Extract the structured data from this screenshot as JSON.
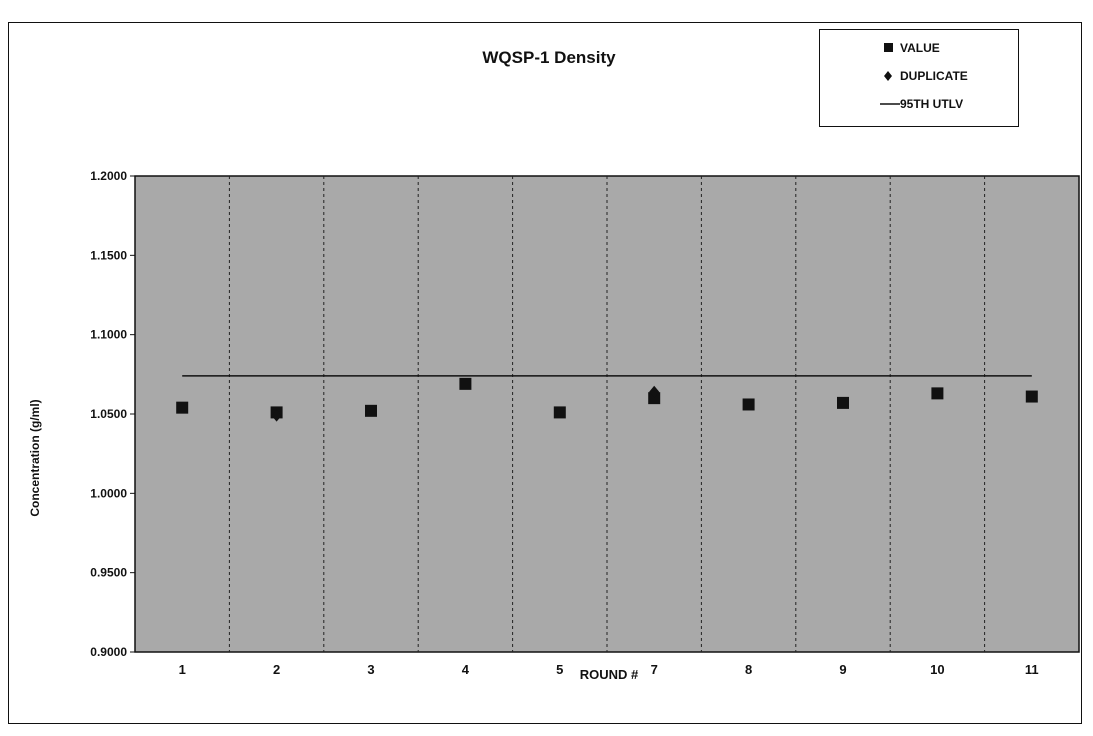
{
  "chart_data": {
    "type": "scatter",
    "title": "WQSP-1 Density",
    "xlabel": "ROUND #",
    "ylabel": "Concentration (g/ml)",
    "categories": [
      "1",
      "2",
      "3",
      "4",
      "5",
      "7",
      "8",
      "9",
      "10",
      "11"
    ],
    "ylim": [
      0.9,
      1.2
    ],
    "yticks": [
      "0.9000",
      "0.9500",
      "1.0000",
      "1.0500",
      "1.1000",
      "1.1500",
      "1.2000"
    ],
    "grid": "vertical dashed lines between rounds",
    "legend_position": "top-right",
    "series": [
      {
        "name": "VALUE",
        "marker": "square",
        "values": [
          1.054,
          1.051,
          1.052,
          1.069,
          1.051,
          1.06,
          1.056,
          1.057,
          1.063,
          1.061
        ]
      },
      {
        "name": "DUPLICATE",
        "marker": "diamond",
        "values": [
          null,
          1.049,
          null,
          null,
          null,
          1.064,
          null,
          null,
          null,
          null
        ]
      },
      {
        "name": "95TH UTLV",
        "marker": "line",
        "values": [
          1.074,
          1.074,
          1.074,
          1.074,
          1.074,
          1.074,
          1.074,
          1.074,
          1.074,
          1.074
        ]
      }
    ]
  },
  "colors": {
    "plot_background": "#a9a9a9",
    "marker": "#111111",
    "axis": "#111111",
    "frame_background": "#ffffff"
  }
}
